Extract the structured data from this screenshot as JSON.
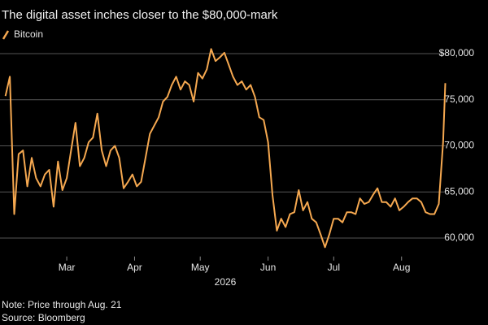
{
  "chart_data": {
    "type": "line",
    "subtitle": "The digital asset inches closer to the $80,000-mark",
    "xlabel": "2026",
    "note": "Note: Price through Aug. 21",
    "source": "Source: Bloomberg",
    "legend": "top-left",
    "grid": true,
    "xlim": [
      -2.5,
      220.5
    ],
    "xticks": [
      {
        "value": 28,
        "label": "Mar"
      },
      {
        "value": 59,
        "label": "Apr"
      },
      {
        "value": 89,
        "label": "May"
      },
      {
        "value": 120,
        "label": "Jun"
      },
      {
        "value": 150,
        "label": "Jul"
      },
      {
        "value": 181,
        "label": "Aug"
      }
    ],
    "ylim": [
      58000,
      82000
    ],
    "yticks": [
      {
        "value": 60000,
        "label": "60,000"
      },
      {
        "value": 65000,
        "label": "65,000"
      },
      {
        "value": 70000,
        "label": "70,000"
      },
      {
        "value": 75000,
        "label": "75,000"
      },
      {
        "value": 80000,
        "label": "$80,000"
      }
    ],
    "x": [
      0,
      2,
      4,
      6,
      8,
      10,
      12,
      14,
      16,
      18,
      20,
      22,
      24,
      26,
      28,
      30,
      32,
      34,
      36,
      38,
      40,
      42,
      44,
      46,
      48,
      50,
      52,
      54,
      56,
      58,
      60,
      62,
      64,
      66,
      68,
      70,
      72,
      74,
      76,
      78,
      80,
      82,
      84,
      86,
      88,
      90,
      92,
      94,
      96,
      98,
      100,
      102,
      104,
      106,
      108,
      110,
      112,
      114,
      116,
      118,
      120,
      122,
      124,
      126,
      128,
      130,
      132,
      134,
      136,
      138,
      140,
      142,
      144,
      146,
      148,
      150,
      152,
      154,
      156,
      158,
      160,
      162,
      164,
      166,
      168,
      170,
      172,
      174,
      176,
      178,
      180,
      182,
      184,
      186,
      188,
      190,
      192,
      194,
      196,
      198,
      200,
      201
    ],
    "series": [
      {
        "name": "Bitcoin",
        "color": "#f5a850",
        "values": [
          75400,
          77500,
          62600,
          69100,
          69500,
          65600,
          68700,
          66500,
          65600,
          66900,
          67400,
          63400,
          68300,
          65200,
          66500,
          69500,
          72500,
          67800,
          68700,
          70400,
          70900,
          73500,
          69500,
          67800,
          69500,
          70000,
          68700,
          65400,
          66100,
          66900,
          65600,
          66100,
          68700,
          71300,
          72200,
          73100,
          74800,
          75300,
          76600,
          77500,
          76100,
          77000,
          76600,
          74800,
          77900,
          77300,
          78300,
          80500,
          79200,
          79600,
          80100,
          78800,
          77500,
          76600,
          77000,
          76100,
          76600,
          75300,
          73100,
          72800,
          70400,
          64700,
          60800,
          62100,
          61200,
          62600,
          62800,
          65200,
          63000,
          63900,
          62100,
          61700,
          60400,
          59000,
          60400,
          62100,
          62100,
          61700,
          62800,
          62800,
          62600,
          64300,
          63700,
          63900,
          64700,
          65400,
          63900,
          63900,
          63400,
          64300,
          63000,
          63400,
          63900,
          64300,
          64300,
          63900,
          62800,
          62600,
          62600,
          63700,
          70400,
          76800
        ]
      }
    ]
  }
}
